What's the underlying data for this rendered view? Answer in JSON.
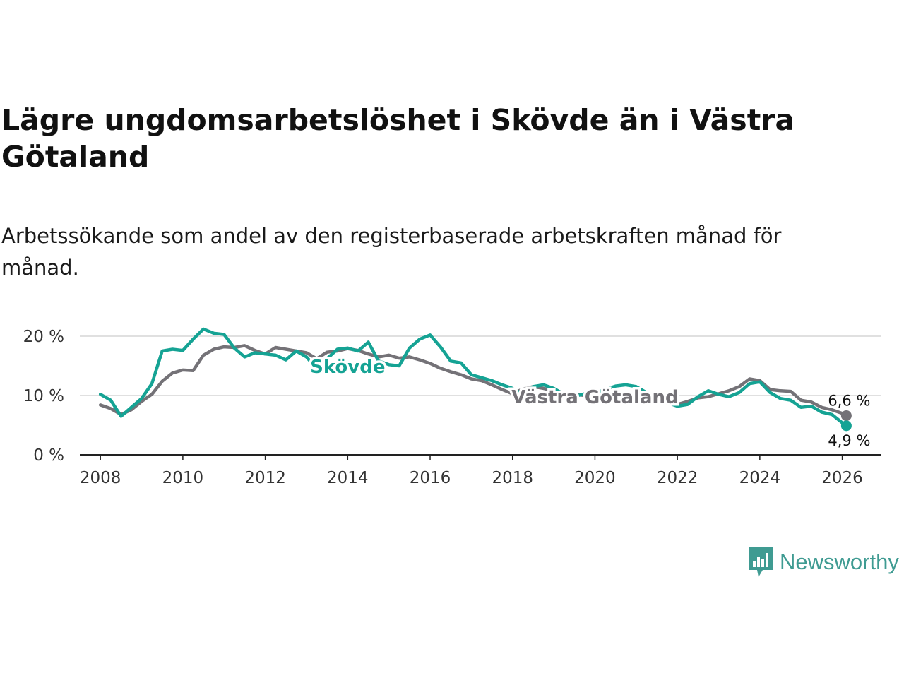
{
  "title": "Lägre ungdomsarbetslöshet i Skövde än i Västra Götaland",
  "subtitle": "Arbetssökande som andel av den registerbaserade arbetskraften månad för månad.",
  "brand": {
    "name": "Newsworthy",
    "icon": "newsworthy-logo-icon",
    "color": "#3f9b92"
  },
  "colors": {
    "skovde": "#15a394",
    "vastra": "#747277",
    "grid": "#d6d6d6",
    "axis": "#222222"
  },
  "chart_data": {
    "type": "line",
    "title": "Lägre ungdomsarbetslöshet i Skövde än i Västra Götaland",
    "xlabel": "",
    "ylabel": "",
    "xlim": [
      2007.5,
      2026.95
    ],
    "ylim": [
      0,
      20
    ],
    "y_ticks": [
      0,
      10,
      20
    ],
    "y_tick_labels": [
      "0 %",
      "10 %",
      "20 %"
    ],
    "x_ticks": [
      2008,
      2010,
      2012,
      2014,
      2016,
      2018,
      2020,
      2022,
      2024,
      2026
    ],
    "x_tick_labels": [
      "2008",
      "2010",
      "2012",
      "2014",
      "2016",
      "2018",
      "2020",
      "2022",
      "2024",
      "2026"
    ],
    "grid": true,
    "series": [
      {
        "name": "Västra Götaland",
        "color": "#747277",
        "end_label": "6,6 %",
        "points": [
          [
            2008.0,
            8.4
          ],
          [
            2008.25,
            7.8
          ],
          [
            2008.5,
            6.8
          ],
          [
            2008.75,
            7.6
          ],
          [
            2009.0,
            9.0
          ],
          [
            2009.25,
            10.2
          ],
          [
            2009.5,
            12.4
          ],
          [
            2009.75,
            13.8
          ],
          [
            2010.0,
            14.3
          ],
          [
            2010.25,
            14.2
          ],
          [
            2010.5,
            16.8
          ],
          [
            2010.75,
            17.8
          ],
          [
            2011.0,
            18.2
          ],
          [
            2011.25,
            18.1
          ],
          [
            2011.5,
            18.4
          ],
          [
            2011.75,
            17.6
          ],
          [
            2012.0,
            17.0
          ],
          [
            2012.25,
            18.1
          ],
          [
            2012.5,
            17.8
          ],
          [
            2012.75,
            17.5
          ],
          [
            2013.0,
            17.2
          ],
          [
            2013.25,
            16.2
          ],
          [
            2013.5,
            17.3
          ],
          [
            2013.75,
            17.5
          ],
          [
            2014.0,
            17.9
          ],
          [
            2014.25,
            17.6
          ],
          [
            2014.5,
            17.0
          ],
          [
            2014.75,
            16.5
          ],
          [
            2015.0,
            16.8
          ],
          [
            2015.25,
            16.3
          ],
          [
            2015.5,
            16.5
          ],
          [
            2015.75,
            16.0
          ],
          [
            2016.0,
            15.4
          ],
          [
            2016.25,
            14.6
          ],
          [
            2016.5,
            14.0
          ],
          [
            2016.75,
            13.5
          ],
          [
            2017.0,
            12.8
          ],
          [
            2017.25,
            12.5
          ],
          [
            2017.5,
            11.8
          ],
          [
            2017.75,
            11.0
          ],
          [
            2018.0,
            10.3
          ],
          [
            2018.25,
            11.1
          ],
          [
            2018.5,
            11.5
          ],
          [
            2018.75,
            11.2
          ],
          [
            2019.0,
            10.8
          ],
          [
            2019.25,
            10.5
          ],
          [
            2019.5,
            10.2
          ],
          [
            2019.75,
            10.0
          ],
          [
            2020.0,
            9.7
          ],
          [
            2020.25,
            9.4
          ],
          [
            2020.5,
            9.3
          ],
          [
            2020.75,
            9.0
          ],
          [
            2021.0,
            8.8
          ],
          [
            2021.25,
            8.9
          ],
          [
            2021.5,
            9.0
          ],
          [
            2021.75,
            8.7
          ],
          [
            2022.0,
            8.5
          ],
          [
            2022.25,
            9.0
          ],
          [
            2022.5,
            9.6
          ],
          [
            2022.75,
            9.8
          ],
          [
            2023.0,
            10.3
          ],
          [
            2023.25,
            10.8
          ],
          [
            2023.5,
            11.5
          ],
          [
            2023.75,
            12.8
          ],
          [
            2024.0,
            12.5
          ],
          [
            2024.25,
            11.0
          ],
          [
            2024.5,
            10.8
          ],
          [
            2024.75,
            10.7
          ],
          [
            2025.0,
            9.2
          ],
          [
            2025.25,
            8.9
          ],
          [
            2025.5,
            8.0
          ],
          [
            2025.75,
            7.6
          ],
          [
            2026.0,
            7.0
          ],
          [
            2026.1,
            6.6
          ]
        ]
      },
      {
        "name": "Skövde",
        "color": "#15a394",
        "end_label": "4,9 %",
        "points": [
          [
            2008.0,
            10.2
          ],
          [
            2008.25,
            9.2
          ],
          [
            2008.5,
            6.5
          ],
          [
            2008.75,
            8.0
          ],
          [
            2009.0,
            9.5
          ],
          [
            2009.25,
            12.0
          ],
          [
            2009.5,
            17.5
          ],
          [
            2009.75,
            17.8
          ],
          [
            2010.0,
            17.6
          ],
          [
            2010.25,
            19.5
          ],
          [
            2010.5,
            21.2
          ],
          [
            2010.75,
            20.5
          ],
          [
            2011.0,
            20.3
          ],
          [
            2011.25,
            18.0
          ],
          [
            2011.5,
            16.5
          ],
          [
            2011.75,
            17.2
          ],
          [
            2012.0,
            17.0
          ],
          [
            2012.25,
            16.8
          ],
          [
            2012.5,
            16.0
          ],
          [
            2012.75,
            17.5
          ],
          [
            2013.0,
            16.5
          ],
          [
            2013.25,
            14.5
          ],
          [
            2013.5,
            16.2
          ],
          [
            2013.75,
            17.8
          ],
          [
            2014.0,
            18.0
          ],
          [
            2014.25,
            17.5
          ],
          [
            2014.5,
            19.0
          ],
          [
            2014.75,
            15.8
          ],
          [
            2015.0,
            15.2
          ],
          [
            2015.25,
            15.0
          ],
          [
            2015.5,
            18.0
          ],
          [
            2015.75,
            19.5
          ],
          [
            2016.0,
            20.2
          ],
          [
            2016.25,
            18.2
          ],
          [
            2016.5,
            15.8
          ],
          [
            2016.75,
            15.5
          ],
          [
            2017.0,
            13.5
          ],
          [
            2017.25,
            13.0
          ],
          [
            2017.5,
            12.5
          ],
          [
            2017.75,
            11.8
          ],
          [
            2018.0,
            11.2
          ],
          [
            2018.25,
            10.2
          ],
          [
            2018.5,
            11.5
          ],
          [
            2018.75,
            11.8
          ],
          [
            2019.0,
            11.2
          ],
          [
            2019.25,
            10.2
          ],
          [
            2019.5,
            9.8
          ],
          [
            2019.75,
            10.3
          ],
          [
            2020.0,
            10.5
          ],
          [
            2020.25,
            11.0
          ],
          [
            2020.5,
            11.6
          ],
          [
            2020.75,
            11.8
          ],
          [
            2021.0,
            11.5
          ],
          [
            2021.25,
            10.5
          ],
          [
            2021.5,
            9.5
          ],
          [
            2021.75,
            8.8
          ],
          [
            2022.0,
            8.2
          ],
          [
            2022.25,
            8.5
          ],
          [
            2022.5,
            9.8
          ],
          [
            2022.75,
            10.8
          ],
          [
            2023.0,
            10.2
          ],
          [
            2023.25,
            9.8
          ],
          [
            2023.5,
            10.5
          ],
          [
            2023.75,
            12.0
          ],
          [
            2024.0,
            12.3
          ],
          [
            2024.25,
            10.5
          ],
          [
            2024.5,
            9.5
          ],
          [
            2024.75,
            9.2
          ],
          [
            2025.0,
            8.0
          ],
          [
            2025.25,
            8.2
          ],
          [
            2025.5,
            7.2
          ],
          [
            2025.75,
            6.8
          ],
          [
            2026.0,
            5.4
          ],
          [
            2026.1,
            4.9
          ]
        ]
      }
    ],
    "annotations": [
      {
        "text": "Skövde",
        "series": "Skövde"
      },
      {
        "text": "Västra Götaland",
        "series": "Västra Götaland"
      }
    ]
  }
}
